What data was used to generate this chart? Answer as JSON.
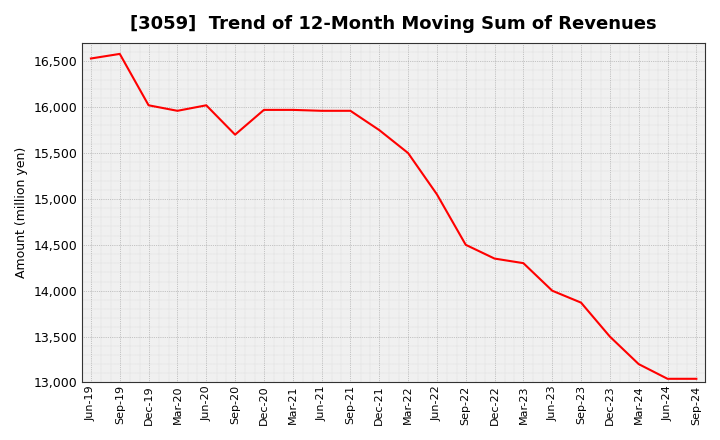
{
  "title": "[3059]  Trend of 12-Month Moving Sum of Revenues",
  "ylabel": "Amount (million yen)",
  "line_color": "#FF0000",
  "line_width": 1.5,
  "background_color": "#FFFFFF",
  "plot_bg_color": "#F0F0F0",
  "grid_color": "#999999",
  "ylim": [
    13000,
    16700
  ],
  "yticks": [
    13000,
    13500,
    14000,
    14500,
    15000,
    15500,
    16000,
    16500
  ],
  "values": [
    16530,
    16580,
    16020,
    15960,
    16020,
    15700,
    15970,
    15970,
    15960,
    15960,
    15750,
    15500,
    15050,
    14500,
    14350,
    14300,
    14000,
    13870,
    13500,
    13200,
    13040,
    13040
  ],
  "xtick_labels": [
    "Jun-19",
    "Sep-19",
    "Dec-19",
    "Mar-20",
    "Jun-20",
    "Sep-20",
    "Dec-20",
    "Mar-21",
    "Jun-21",
    "Sep-21",
    "Dec-21",
    "Mar-22",
    "Jun-22",
    "Sep-22",
    "Dec-22",
    "Mar-23",
    "Jun-23",
    "Sep-23",
    "Dec-23",
    "Mar-24",
    "Jun-24",
    "Sep-24"
  ],
  "title_fontsize": 13,
  "ylabel_fontsize": 9,
  "ytick_fontsize": 9,
  "xtick_fontsize": 8
}
